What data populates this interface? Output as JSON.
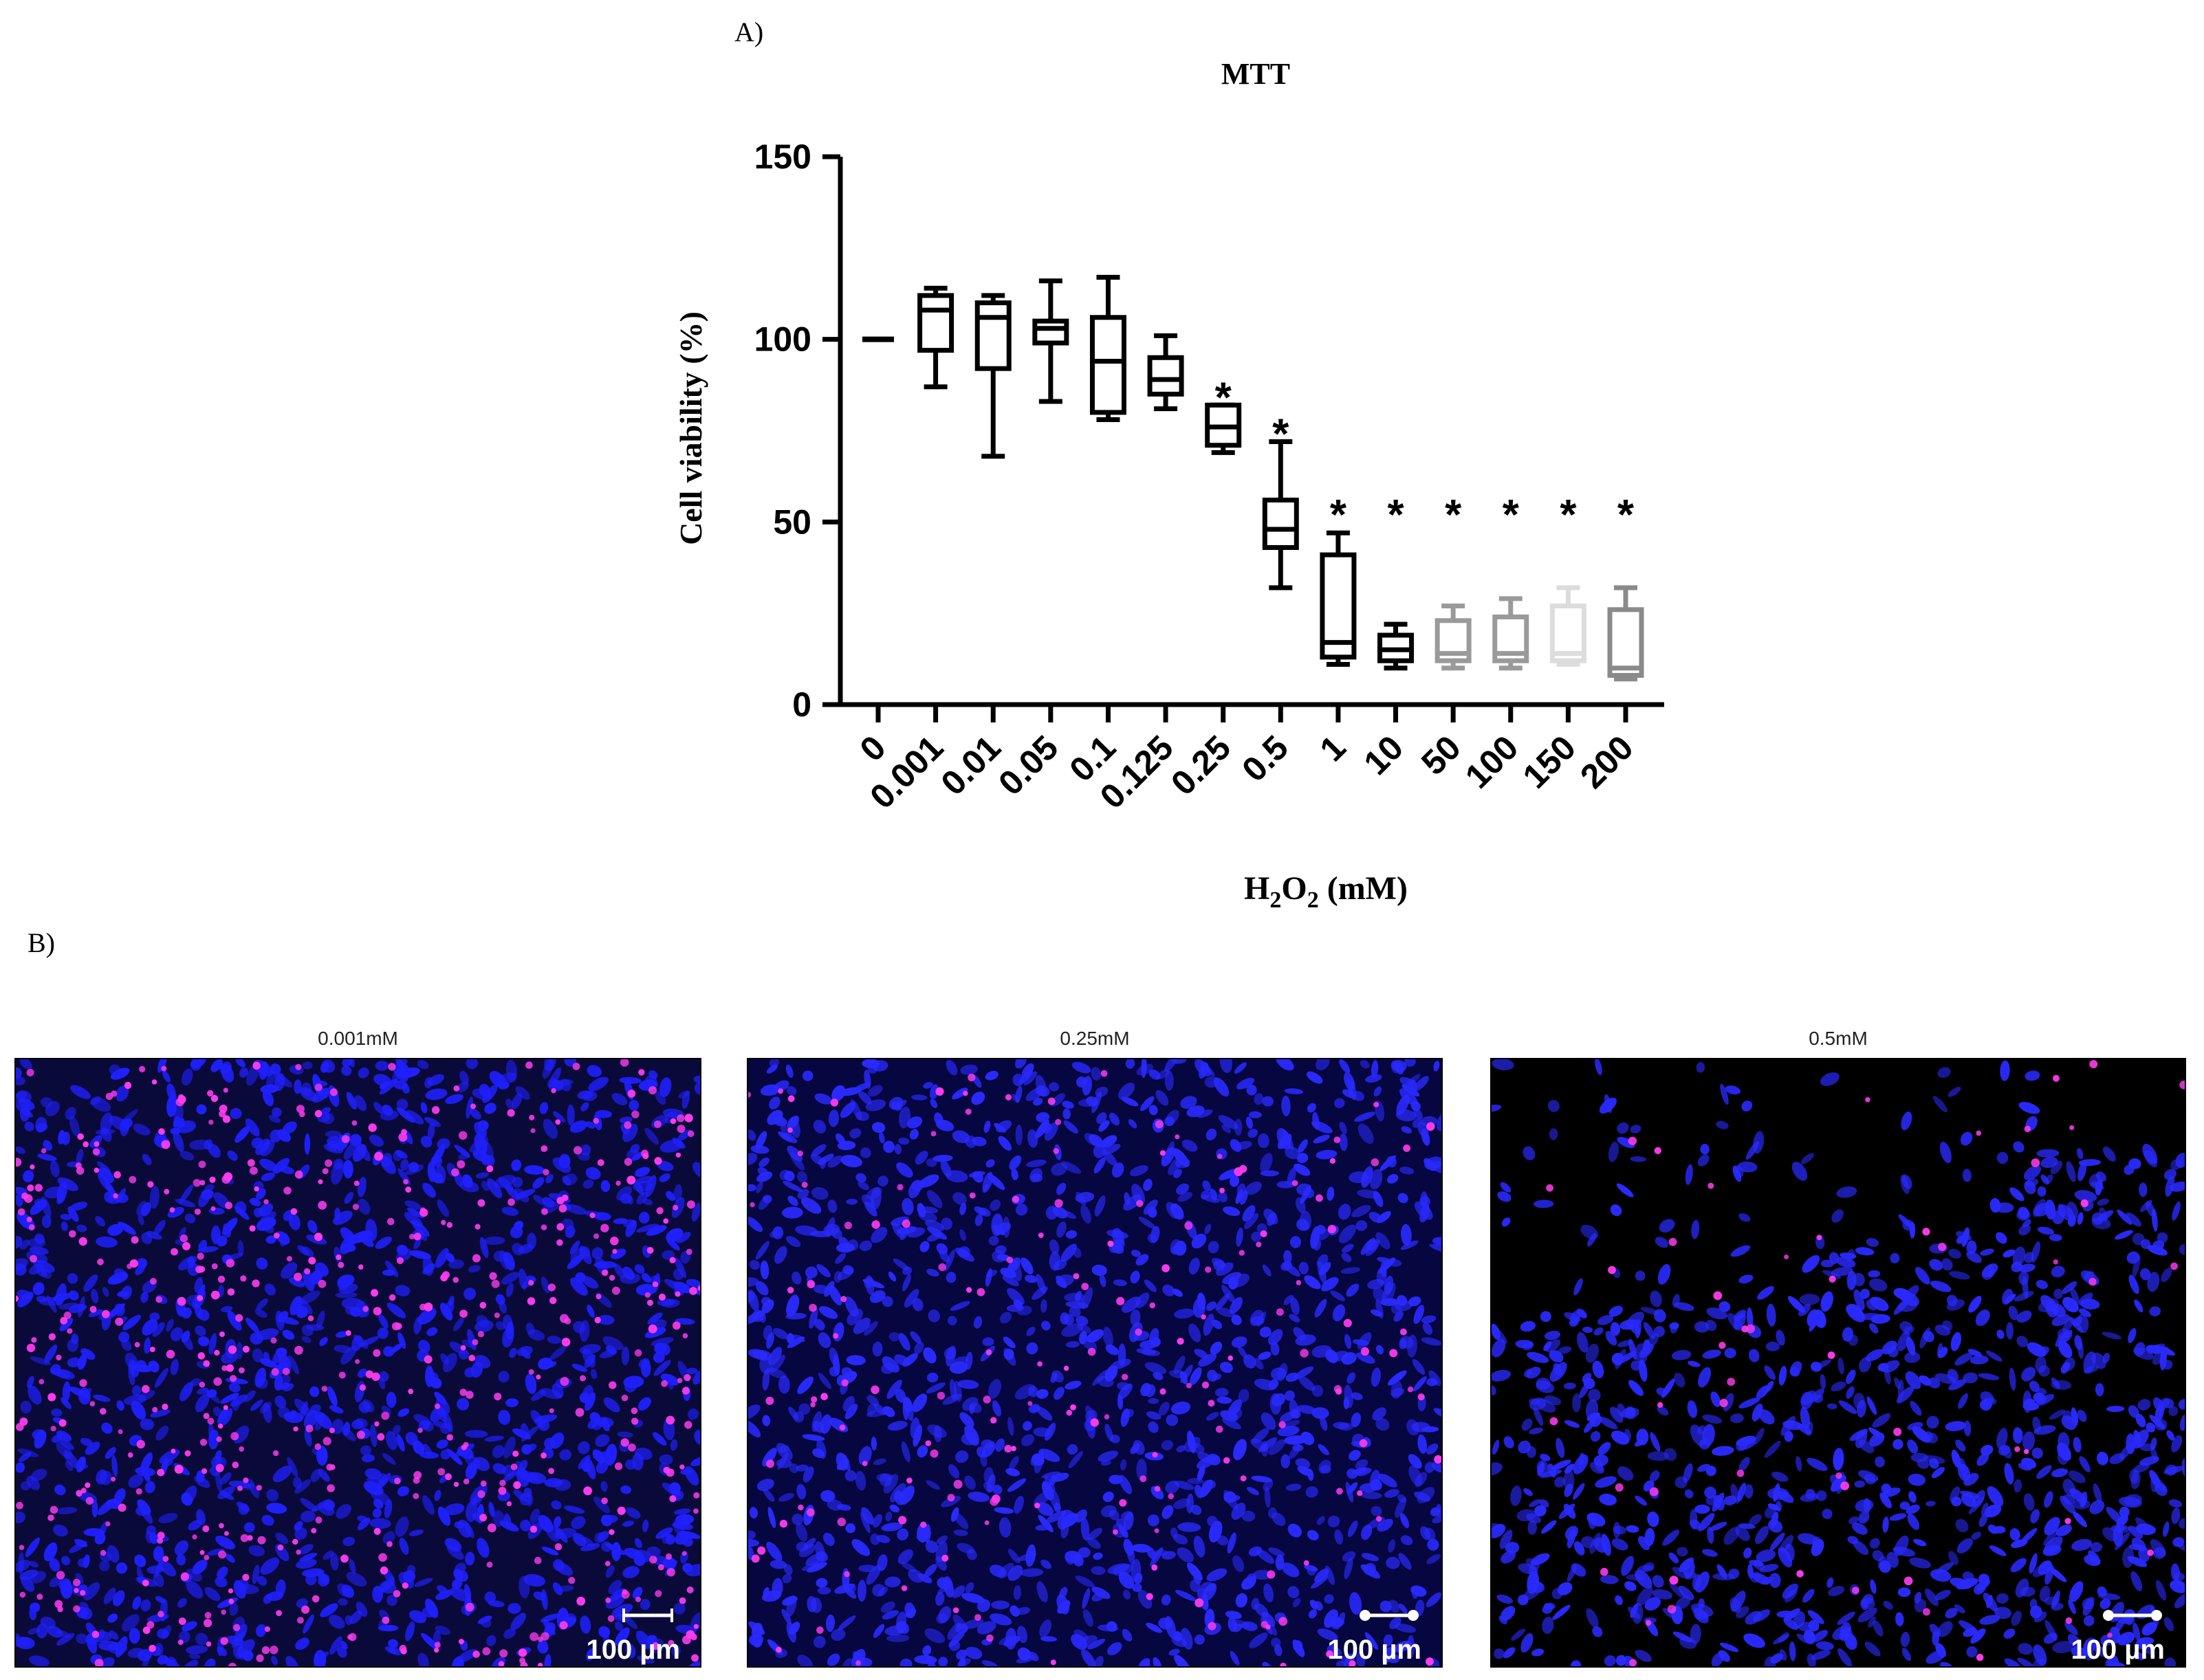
{
  "panel_a_label": "A)",
  "panel_b_label": "B)",
  "chart_data": {
    "type": "box",
    "title": "MTT",
    "ylabel": "Cell viability (%)",
    "xlabel_main": "H",
    "xlabel_sub1": "2",
    "xlabel_mid": "O",
    "xlabel_sub2": "2",
    "xlabel_tail": " (mM)",
    "ylim": [
      0,
      150
    ],
    "yticks": [
      "0",
      "50",
      "100",
      "150"
    ],
    "yticks_values": [
      0,
      50,
      100,
      150
    ],
    "categories": [
      "0",
      "0.001",
      "0.01",
      "0.05",
      "0.1",
      "0.125",
      "0.25",
      "0.5",
      "1",
      "10",
      "50",
      "100",
      "150",
      "200"
    ],
    "boxes": [
      {
        "min": 100,
        "q1": 100,
        "median": 100,
        "q3": 100,
        "max": 100,
        "color": "#000000",
        "sig": ""
      },
      {
        "min": 87,
        "q1": 97,
        "median": 108,
        "q3": 112,
        "max": 114,
        "color": "#000000",
        "sig": ""
      },
      {
        "min": 68,
        "q1": 92,
        "median": 106,
        "q3": 110,
        "max": 112,
        "color": "#000000",
        "sig": ""
      },
      {
        "min": 83,
        "q1": 99,
        "median": 103,
        "q3": 105,
        "max": 116,
        "color": "#000000",
        "sig": ""
      },
      {
        "min": 78,
        "q1": 80,
        "median": 94,
        "q3": 106,
        "max": 117,
        "color": "#000000",
        "sig": ""
      },
      {
        "min": 81,
        "q1": 85,
        "median": 89,
        "q3": 95,
        "max": 101,
        "color": "#000000",
        "sig": ""
      },
      {
        "min": 69,
        "q1": 71,
        "median": 76,
        "q3": 82,
        "max": 82,
        "color": "#000000",
        "sig": "*"
      },
      {
        "min": 32,
        "q1": 43,
        "median": 48,
        "q3": 56,
        "max": 72,
        "color": "#000000",
        "sig": "*"
      },
      {
        "min": 11,
        "q1": 13,
        "median": 17,
        "q3": 41,
        "max": 47,
        "color": "#000000",
        "sig": "*"
      },
      {
        "min": 10,
        "q1": 12,
        "median": 15,
        "q3": 19,
        "max": 22,
        "color": "#000000",
        "sig": "*"
      },
      {
        "min": 10,
        "q1": 12,
        "median": 14,
        "q3": 23,
        "max": 27,
        "color": "#9a9a9a",
        "sig": "*"
      },
      {
        "min": 10,
        "q1": 12,
        "median": 14,
        "q3": 24,
        "max": 29,
        "color": "#9a9a9a",
        "sig": "*"
      },
      {
        "min": 11,
        "q1": 12,
        "median": 14,
        "q3": 27,
        "max": 32,
        "color": "#dcdcdc",
        "sig": "*"
      },
      {
        "min": 7,
        "q1": 8,
        "median": 10,
        "q3": 26,
        "max": 32,
        "color": "#8a8a8a",
        "sig": "*"
      }
    ]
  },
  "images": [
    {
      "label": "0.001mM",
      "scale_label": "100 µm",
      "bg": "#0a0a3a",
      "nucleus_color": "#ff3cf0",
      "cell_color": "#2020ff",
      "pink_density": 0.55
    },
    {
      "label": "0.25mM",
      "scale_label": "100 µm",
      "bg": "#060640",
      "nucleus_color": "#ff3cf0",
      "cell_color": "#2a2aff",
      "pink_density": 0.18
    },
    {
      "label": "0.5mM",
      "scale_label": "100 µm",
      "bg": "#000000",
      "nucleus_color": "#ff3cf0",
      "cell_color": "#2a2aff",
      "pink_density": 0.06
    }
  ]
}
